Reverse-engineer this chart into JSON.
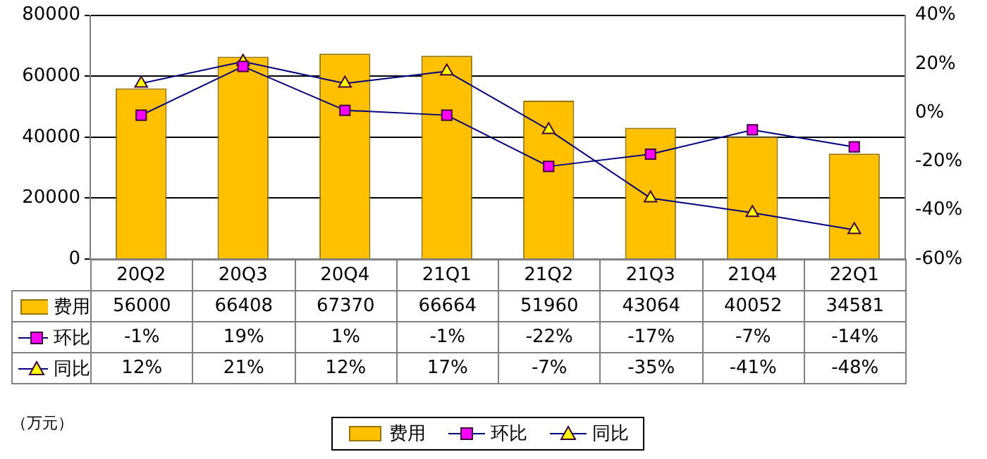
{
  "chart_data": {
    "type": "bar",
    "categories": [
      "20Q2",
      "20Q3",
      "20Q4",
      "21Q1",
      "21Q2",
      "21Q3",
      "21Q4",
      "22Q1"
    ],
    "series": [
      {
        "name": "费用",
        "type": "bar",
        "color": "#ffc000",
        "values": [
          56000,
          66408,
          67370,
          66664,
          51960,
          43064,
          40052,
          34581
        ],
        "value_labels": [
          "56000",
          "66408",
          "67370",
          "66664",
          "51960",
          "43064",
          "40052",
          "34581"
        ]
      },
      {
        "name": "环比",
        "type": "line",
        "axis": "y2",
        "marker": "square",
        "color": "#ff00ff",
        "values": [
          -1,
          19,
          1,
          -1,
          -22,
          -17,
          -7,
          -14
        ],
        "value_labels": [
          "-1%",
          "19%",
          "1%",
          "-1%",
          "-22%",
          "-17%",
          "-7%",
          "-14%"
        ]
      },
      {
        "name": "同比",
        "type": "line",
        "axis": "y2",
        "marker": "triangle",
        "color": "#ffff00",
        "values": [
          12,
          21,
          12,
          17,
          -7,
          -35,
          -41,
          -48
        ],
        "value_labels": [
          "12%",
          "21%",
          "12%",
          "17%",
          "-7%",
          "-35%",
          "-41%",
          "-48%"
        ]
      }
    ],
    "ylim": [
      0,
      80000
    ],
    "yticks": [
      0,
      20000,
      40000,
      60000,
      80000
    ],
    "y2lim": [
      -60,
      40
    ],
    "y2ticks": [
      {
        "value": -60,
        "label": "-60%"
      },
      {
        "value": -40,
        "label": "-40%"
      },
      {
        "value": -20,
        "label": "-20%"
      },
      {
        "value": 0,
        "label": "0%"
      },
      {
        "value": 20,
        "label": "20%"
      },
      {
        "value": 40,
        "label": "40%"
      }
    ],
    "grid": "y",
    "legend": "bottom",
    "annotations": [
      "（万元）"
    ]
  }
}
